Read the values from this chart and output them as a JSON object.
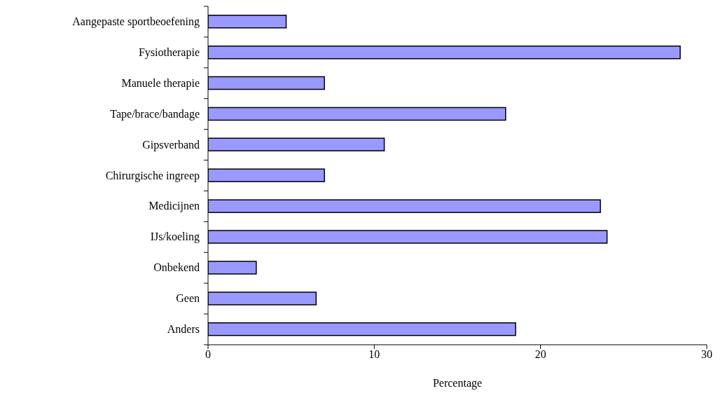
{
  "chart_data": {
    "type": "bar",
    "orientation": "horizontal",
    "xlabel": "Percentage",
    "categories": [
      "Aangepaste sportbeoefening",
      "Fysiotherapie",
      "Manuele therapie",
      "Tape/brace/bandage",
      "Gipsverband",
      "Chirurgische ingreep",
      "Medicijnen",
      "IJs/koeling",
      "Onbekend",
      "Geen",
      "Anders"
    ],
    "values": [
      4.7,
      28.4,
      7.0,
      17.9,
      10.6,
      7.0,
      23.6,
      24.0,
      2.9,
      6.5,
      18.5
    ],
    "color": "#9999ff",
    "xlim": [
      0,
      30
    ],
    "xticks": [
      0,
      10,
      20,
      30
    ],
    "grid": false,
    "legend": false
  }
}
